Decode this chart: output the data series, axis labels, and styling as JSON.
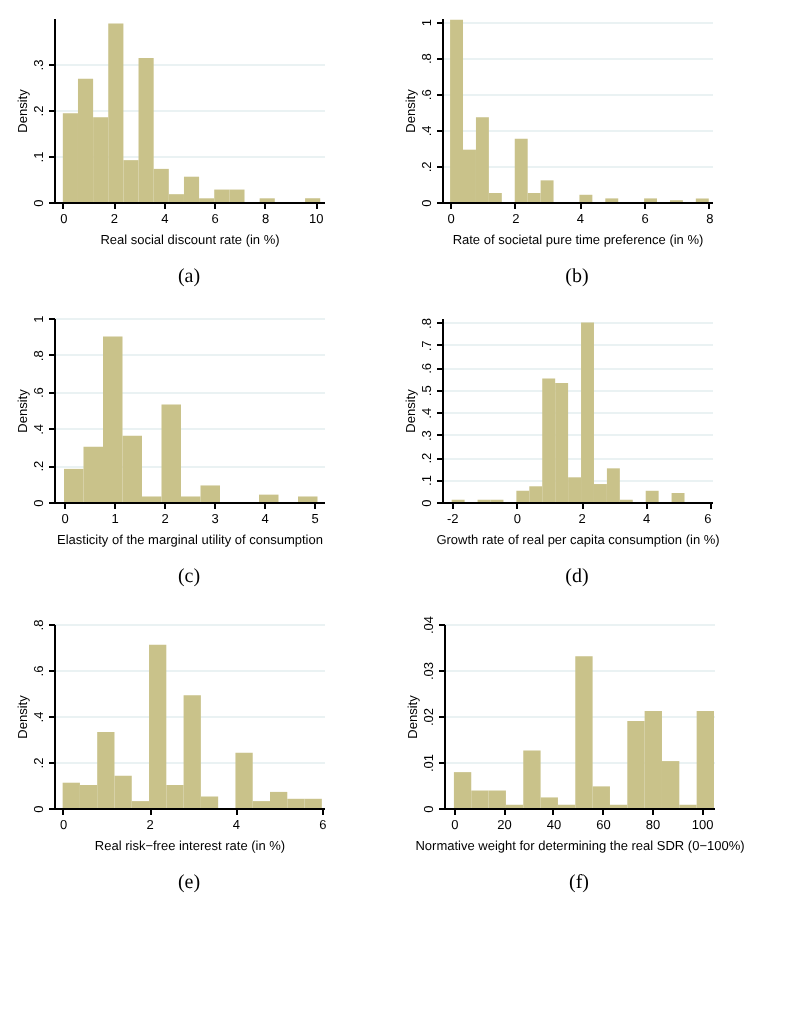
{
  "chart_data": [
    {
      "type": "histogram",
      "xlabel": "Real social discount rate (in %)",
      "ylabel": "Density",
      "annotations": [
        "(a)"
      ],
      "color": "#c9c28a",
      "grid": "y",
      "bins": [
        0,
        0.6,
        1.2,
        1.8,
        2.4,
        3.0,
        3.6,
        4.2,
        4.8,
        5.4,
        6.0,
        6.6,
        7.2,
        7.8,
        8.4,
        9.0,
        9.6,
        10.2
      ],
      "values": [
        0.193,
        0.268,
        0.184,
        0.388,
        0.091,
        0.313,
        0.072,
        0.017,
        0.055,
        0.008,
        0.027,
        0.027,
        0,
        0.008,
        0,
        0,
        0.008
      ],
      "xlim": [
        -0.35,
        10.35
      ],
      "xticks": [
        0,
        2,
        4,
        6,
        8,
        10
      ],
      "ylim": [
        0,
        0.4
      ],
      "yticks": [
        {
          "value": 0,
          "label": "0"
        },
        {
          "value": 0.1,
          "label": ".1"
        },
        {
          "value": 0.2,
          "label": ".2"
        },
        {
          "value": 0.3,
          "label": ".3"
        }
      ]
    },
    {
      "type": "histogram",
      "xlabel": "Rate of societal pure time preference (in %)",
      "ylabel": "Density",
      "annotations": [
        "(b)"
      ],
      "color": "#c9c28a",
      "grid": "y",
      "bins": [
        0,
        0.4,
        0.8,
        1.2,
        1.6,
        2.0,
        2.4,
        2.8,
        3.2,
        3.6,
        4.0,
        4.4,
        4.8,
        5.2,
        5.6,
        6.0,
        6.4,
        6.8,
        7.2,
        7.6,
        8.0
      ],
      "values": [
        1.01,
        0.29,
        0.47,
        0.05,
        0,
        0.35,
        0.05,
        0.12,
        0,
        0,
        0.04,
        0,
        0.02,
        0,
        0,
        0.02,
        0,
        0.01,
        0,
        0.02
      ],
      "xlim": [
        -0.25,
        8.1
      ],
      "xticks": [
        0,
        2,
        4,
        6,
        8
      ],
      "ylim": [
        0,
        1.02
      ],
      "yticks": [
        {
          "value": 0,
          "label": "0"
        },
        {
          "value": 0.2,
          "label": ".2"
        },
        {
          "value": 0.4,
          "label": ".4"
        },
        {
          "value": 0.6,
          "label": ".6"
        },
        {
          "value": 0.8,
          "label": ".8"
        },
        {
          "value": 1,
          "label": "1"
        }
      ]
    },
    {
      "type": "histogram",
      "xlabel": "Elasticity of the marginal utility of consumption",
      "ylabel": "Density",
      "annotations": [
        "(c)"
      ],
      "color": "#c9c28a",
      "grid": "y",
      "bins": [
        0,
        0.39,
        0.78,
        1.17,
        1.56,
        1.95,
        2.34,
        2.73,
        3.12,
        3.51,
        3.9,
        4.29,
        4.68,
        5.07
      ],
      "values": [
        0.18,
        0.3,
        0.9,
        0.36,
        0.03,
        0.53,
        0.03,
        0.09,
        0,
        0,
        0.04,
        0,
        0.03
      ],
      "xlim": [
        -0.2,
        5.2
      ],
      "xticks": [
        0,
        1,
        2,
        3,
        4,
        5
      ],
      "ylim": [
        0,
        1
      ],
      "yticks": [
        {
          "value": 0,
          "label": "0"
        },
        {
          "value": 0.2,
          "label": ".2"
        },
        {
          "value": 0.4,
          "label": ".4"
        },
        {
          "value": 0.6,
          "label": ".6"
        },
        {
          "value": 0.8,
          "label": ".8"
        },
        {
          "value": 1,
          "label": "1"
        }
      ]
    },
    {
      "type": "histogram",
      "xlabel": "Growth rate of real per capita consumption (in %)",
      "ylabel": "Density",
      "annotations": [
        "(d)"
      ],
      "color": "#c9c28a",
      "grid": "y",
      "bins": [
        -2,
        -1.6,
        -1.2,
        -0.8,
        -0.4,
        0,
        0.4,
        0.8,
        1.2,
        1.6,
        2.0,
        2.4,
        2.8,
        3.2,
        3.6,
        4.0,
        4.4,
        4.8,
        5.2
      ],
      "values": [
        0.01,
        0,
        0.01,
        0.01,
        0,
        0.05,
        0.07,
        0.55,
        0.53,
        0.11,
        0.8,
        0.08,
        0.15,
        0.01,
        0,
        0.05,
        0,
        0.04
      ],
      "xlim": [
        -2.3,
        6.05
      ],
      "xticks": [
        -2,
        0,
        2,
        4,
        6
      ],
      "ylim": [
        0,
        0.82
      ],
      "yticks": [
        {
          "value": 0,
          "label": "0"
        },
        {
          "value": 0.1,
          "label": ".1"
        },
        {
          "value": 0.2,
          "label": ".2"
        },
        {
          "value": 0.3,
          "label": ".3"
        },
        {
          "value": 0.4,
          "label": ".4"
        },
        {
          "value": 0.5,
          "label": ".5"
        },
        {
          "value": 0.6,
          "label": ".6"
        },
        {
          "value": 0.7,
          "label": ".7"
        },
        {
          "value": 0.8,
          "label": ".8"
        }
      ]
    },
    {
      "type": "histogram",
      "xlabel": "Real risk−free interest rate (in %)",
      "ylabel": "Density",
      "annotations": [
        "(e)"
      ],
      "color": "#c9c28a",
      "grid": "y",
      "bins": [
        0,
        0.4,
        0.8,
        1.2,
        1.6,
        2.0,
        2.4,
        2.8,
        3.2,
        3.6,
        4.0,
        4.4,
        4.8,
        5.2,
        5.6,
        6.0
      ],
      "values": [
        0.11,
        0.1,
        0.33,
        0.14,
        0.03,
        0.71,
        0.1,
        0.49,
        0.05,
        0,
        0.24,
        0.03,
        0.07,
        0.04,
        0.04
      ],
      "xlim": [
        -0.2,
        6.05
      ],
      "xticks": [
        0,
        2,
        4,
        6
      ],
      "ylim": [
        0,
        0.8
      ],
      "yticks": [
        {
          "value": 0,
          "label": "0"
        },
        {
          "value": 0.2,
          "label": ".2"
        },
        {
          "value": 0.4,
          "label": ".4"
        },
        {
          "value": 0.6,
          "label": ".6"
        },
        {
          "value": 0.8,
          "label": ".8"
        }
      ]
    },
    {
      "type": "histogram",
      "xlabel": "Normative weight for determining the real SDR (0−100%)",
      "ylabel": "Density",
      "annotations": [
        "(f)"
      ],
      "color": "#c9c28a",
      "grid": "y",
      "bins": [
        0,
        7,
        14,
        21,
        28,
        35,
        42,
        49,
        56,
        63,
        70,
        77,
        84,
        91,
        98,
        105
      ],
      "values": [
        0.0078,
        0.0038,
        0.0038,
        0.0007,
        0.0125,
        0.0023,
        0.0007,
        0.033,
        0.0047,
        0.0007,
        0.0189,
        0.0211,
        0.0102,
        0.0007,
        0.0211
      ],
      "xlim": [
        -4,
        105
      ],
      "xticks": [
        0,
        20,
        40,
        60,
        80,
        100
      ],
      "ylim": [
        0,
        0.04
      ],
      "yticks": [
        {
          "value": 0,
          "label": "0"
        },
        {
          "value": 0.01,
          "label": ".01"
        },
        {
          "value": 0.02,
          "label": ".02"
        },
        {
          "value": 0.03,
          "label": ".03"
        },
        {
          "value": 0.04,
          "label": ".04"
        }
      ]
    }
  ]
}
